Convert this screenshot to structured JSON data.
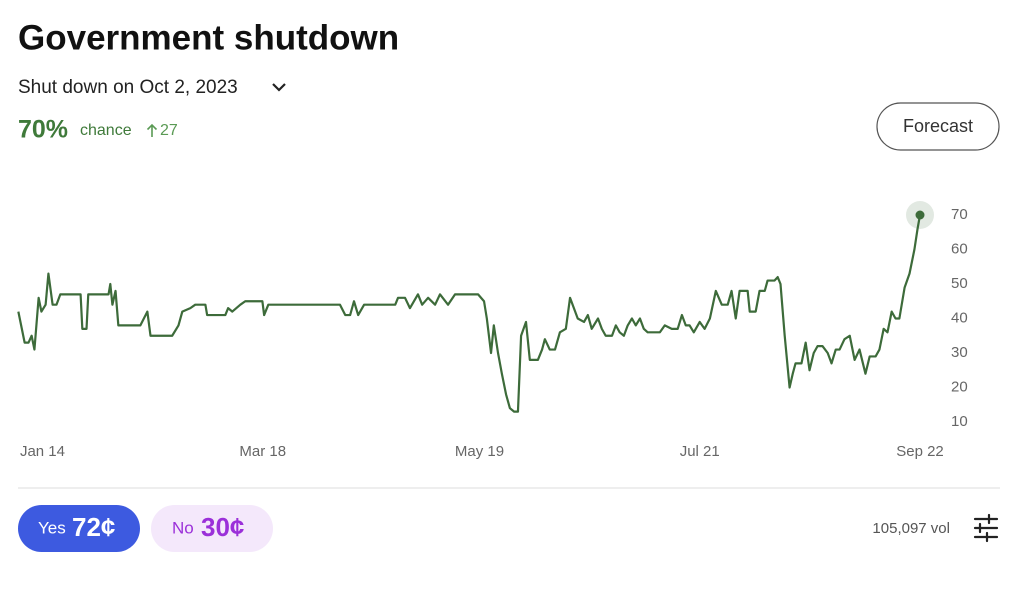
{
  "header": {
    "title": "Government shutdown",
    "outcome": "Shut down on Oct 2, 2023",
    "probability": "70%",
    "probability_label": "chance",
    "change": "27",
    "forecast_button": "Forecast"
  },
  "chart_data": {
    "type": "line",
    "color": "#3d6b3a",
    "grid": false,
    "x": [
      -6.9,
      -5.1,
      -4,
      -3.1,
      -2.3,
      -1.1,
      -0.3,
      0.9,
      1.7,
      2.9,
      4,
      5.1,
      6.3,
      10.9,
      11.4,
      12.6,
      13.1,
      18.9,
      19.4,
      20,
      20.9,
      21.7,
      28,
      30,
      30.9,
      37.1,
      38.9,
      40,
      42.3,
      43.7,
      46.6,
      47.1,
      52.3,
      53.1,
      54.3,
      56.6,
      58,
      62.9,
      63.4,
      64.6,
      73.7,
      85.1,
      86.6,
      88,
      89.1,
      90.3,
      92,
      100.9,
      101.7,
      103.7,
      105.1,
      107.4,
      108.6,
      110.3,
      112.3,
      113.7,
      116,
      118,
      124.6,
      126.3,
      127.1,
      128.3,
      129.1,
      130.3,
      131.4,
      132.6,
      133.7,
      134.9,
      136,
      136.9,
      138.3,
      139.4,
      141.7,
      142.9,
      143.7,
      145.1,
      146.6,
      148,
      149.7,
      150.9,
      152,
      153.1,
      154.9,
      156,
      157.1,
      158.9,
      160,
      161.1,
      162.9,
      164,
      165.1,
      166.3,
      167.4,
      168.6,
      169.7,
      170.9,
      172,
      173.1,
      175.1,
      176.6,
      178,
      180,
      181.7,
      182.9,
      184,
      185.1,
      186.3,
      188,
      189.4,
      190.9,
      192.6,
      194.3,
      196,
      197.1,
      198.3,
      199.4,
      201.7,
      202.3,
      204,
      205.1,
      206.6,
      207.4,
      209.4,
      210.3,
      211.1,
      212.3,
      213.7,
      214.6,
      215.4,
      217.1,
      218.3,
      219.4,
      220.6,
      221.7,
      223.1,
      224.6,
      225.7,
      226.9,
      228,
      229.4,
      230.9,
      232.3,
      233.7,
      235.4,
      236.6,
      238.3,
      239.4,
      240.6,
      241.7,
      242.9,
      244,
      245.1,
      246.6,
      248,
      249.4,
      250.3,
      251
    ],
    "values": [
      42,
      33,
      33,
      35,
      31,
      46,
      42,
      44,
      53,
      44,
      44,
      47,
      47,
      47,
      37,
      37,
      47,
      47,
      50,
      44,
      48,
      38,
      38,
      42,
      35,
      35,
      38,
      42,
      43,
      44,
      44,
      41,
      41,
      43,
      42,
      44,
      45,
      45,
      41,
      44,
      44,
      44,
      41,
      41,
      45,
      41,
      44,
      44,
      46,
      46,
      43,
      47,
      44,
      46,
      44,
      47,
      44,
      47,
      47,
      45,
      40,
      30,
      38,
      30,
      24,
      18,
      14,
      13,
      13,
      35,
      39,
      28,
      28,
      31,
      34,
      31,
      31,
      36,
      37,
      46,
      43,
      40,
      39,
      41,
      37,
      40,
      37,
      35,
      35,
      38,
      36,
      35,
      38,
      40,
      38,
      40,
      37,
      36,
      36,
      36,
      38,
      37,
      37,
      41,
      38,
      38,
      36,
      39,
      37,
      40,
      48,
      44,
      44,
      48,
      40,
      48,
      48,
      42,
      42,
      48,
      48,
      51,
      51,
      52,
      50,
      35,
      20,
      24,
      27,
      27,
      33,
      25,
      30,
      32,
      32,
      30,
      27,
      31,
      31,
      34,
      35,
      28,
      31,
      24,
      29,
      29,
      31,
      37,
      36,
      42,
      40,
      40,
      49,
      53,
      60,
      66,
      70
    ],
    "xlim": [
      -7,
      251
    ],
    "xticks": [
      {
        "value": 0,
        "label": "Jan 14"
      },
      {
        "value": 63,
        "label": "Mar 18"
      },
      {
        "value": 125,
        "label": "May 19"
      },
      {
        "value": 188,
        "label": "Jul 21"
      },
      {
        "value": 251,
        "label": "Sep 22"
      }
    ],
    "ylim": [
      5,
      75
    ],
    "yticks": [
      10,
      20,
      30,
      40,
      50,
      60,
      70
    ]
  },
  "footer": {
    "yes_label": "Yes",
    "yes_price": "72¢",
    "no_label": "No",
    "no_price": "30¢",
    "volume": "105,097 vol"
  }
}
